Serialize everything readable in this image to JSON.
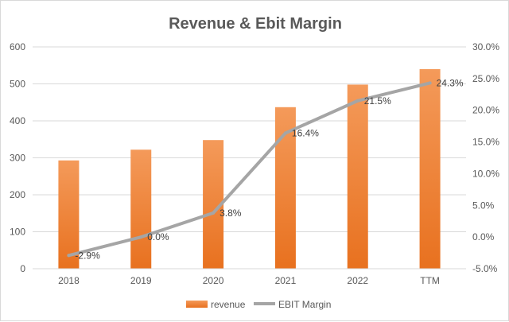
{
  "chart_data": {
    "type": "bar+line",
    "title": "Revenue & Ebit Margin",
    "categories": [
      "2018",
      "2019",
      "2020",
      "2021",
      "2022",
      "TTM"
    ],
    "series": [
      {
        "name": "revenue",
        "type": "bar",
        "axis": "left",
        "values": [
          293,
          322,
          348,
          437,
          498,
          540
        ]
      },
      {
        "name": "EBIT Margin",
        "type": "line",
        "axis": "right",
        "values": [
          -2.9,
          0.0,
          3.8,
          16.4,
          21.5,
          24.3
        ],
        "data_labels": [
          "-2.9%",
          "0.0%",
          "3.8%",
          "16.4%",
          "21.5%",
          "24.3%"
        ]
      }
    ],
    "left_axis": {
      "ylim": [
        0,
        600
      ],
      "ticks": [
        "0",
        "100",
        "200",
        "300",
        "400",
        "500",
        "600"
      ]
    },
    "right_axis": {
      "ylim": [
        -5,
        30
      ],
      "ticks": [
        "-5.0%",
        "0.0%",
        "5.0%",
        "10.0%",
        "15.0%",
        "20.0%",
        "25.0%",
        "30.0%"
      ]
    },
    "grid": true,
    "legend_position": "bottom",
    "colors": {
      "bar": "#ed7d31",
      "line": "#a5a5a5"
    }
  }
}
